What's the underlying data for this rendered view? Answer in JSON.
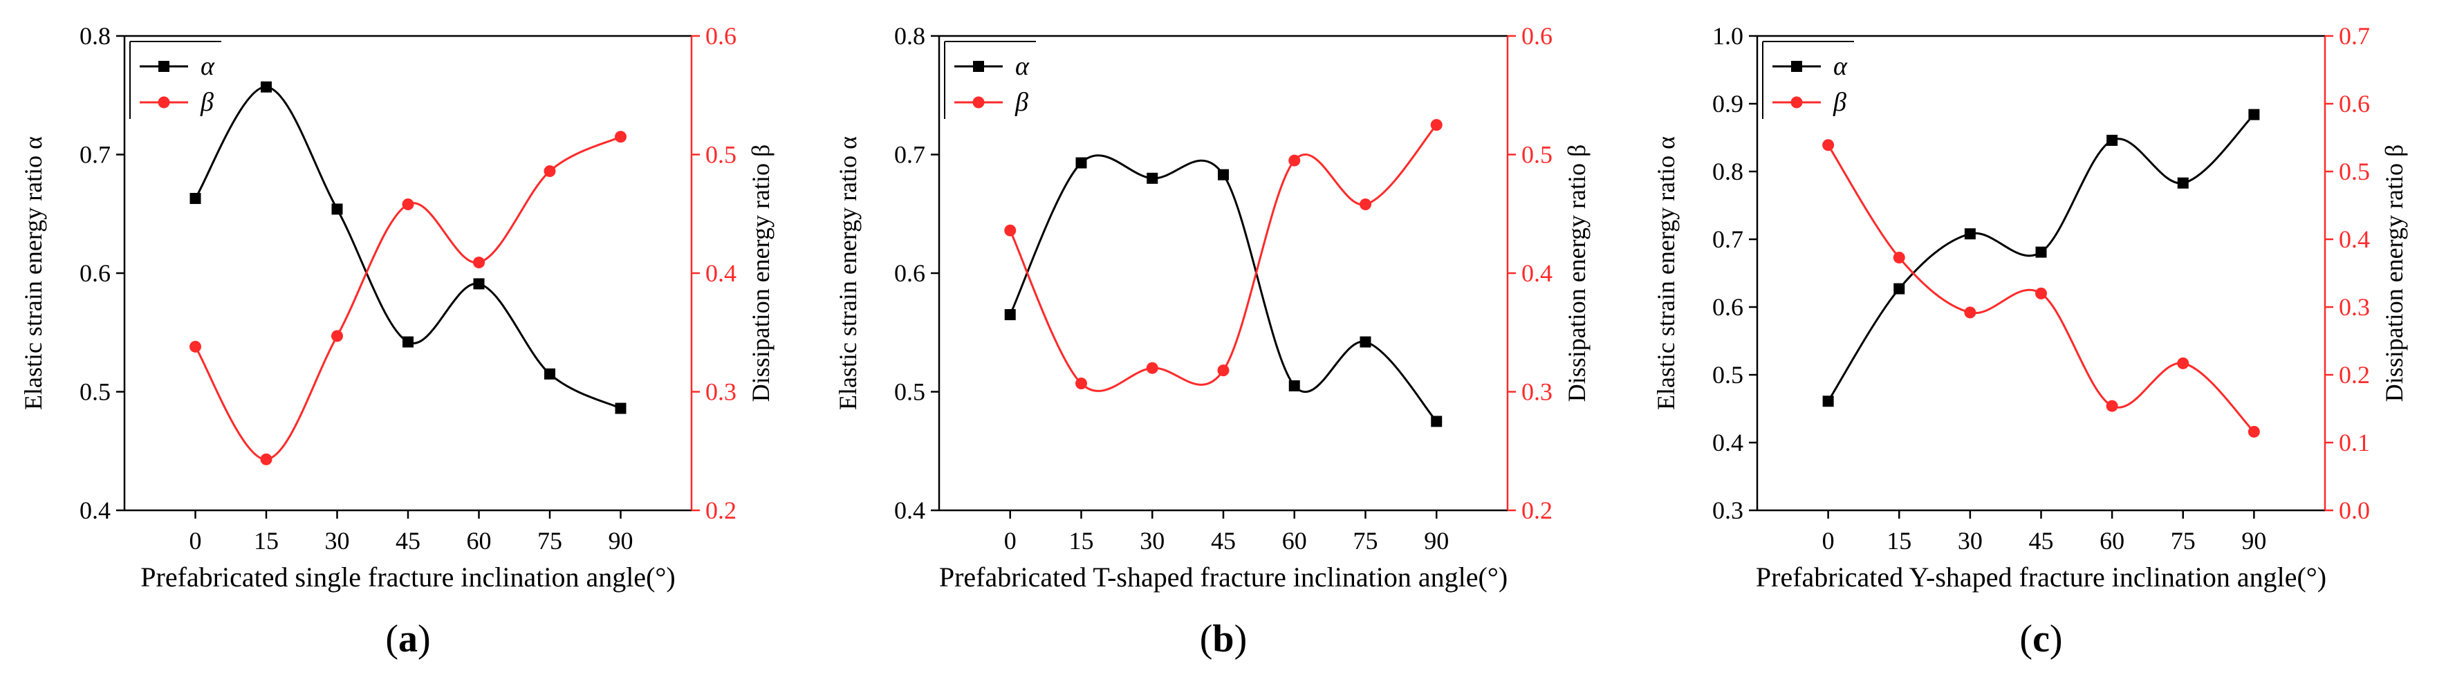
{
  "chart_data": [
    {
      "type": "line",
      "panel_label": "a",
      "title": "",
      "xlabel": "Prefabricated single fracture inclination angle(°)",
      "ylabel_left": "Elastic strain energy ratio α",
      "ylabel_right": "Dissipation energy ratio β",
      "x": [
        0,
        15,
        30,
        45,
        60,
        75,
        90
      ],
      "x_ticks": [
        0,
        15,
        30,
        45,
        60,
        75,
        90
      ],
      "xlim": [
        -15,
        105
      ],
      "ylim_left": [
        0.4,
        0.8
      ],
      "yticks_left": [
        0.4,
        0.5,
        0.6,
        0.7,
        0.8
      ],
      "ylim_right": [
        0.2,
        0.6
      ],
      "yticks_right": [
        0.2,
        0.3,
        0.4,
        0.5,
        0.6
      ],
      "legend": "top-left",
      "series": [
        {
          "name": "α",
          "axis": "left",
          "color": "#000000",
          "marker": "square",
          "values": [
            0.663,
            0.757,
            0.654,
            0.542,
            0.591,
            0.515,
            0.486
          ]
        },
        {
          "name": "β",
          "axis": "right",
          "color": "#ff2a2a",
          "marker": "circle",
          "values": [
            0.338,
            0.243,
            0.347,
            0.458,
            0.409,
            0.486,
            0.515
          ]
        }
      ]
    },
    {
      "type": "line",
      "panel_label": "b",
      "title": "",
      "xlabel": "Prefabricated T-shaped fracture inclination angle(°)",
      "ylabel_left": "Elastic strain energy ratio α",
      "ylabel_right": "Dissipation energy ratio β",
      "x": [
        0,
        15,
        30,
        45,
        60,
        75,
        90
      ],
      "x_ticks": [
        0,
        15,
        30,
        45,
        60,
        75,
        90
      ],
      "xlim": [
        -15,
        105
      ],
      "ylim_left": [
        0.4,
        0.8
      ],
      "yticks_left": [
        0.4,
        0.5,
        0.6,
        0.7,
        0.8
      ],
      "ylim_right": [
        0.2,
        0.6
      ],
      "yticks_right": [
        0.2,
        0.3,
        0.4,
        0.5,
        0.6
      ],
      "legend": "top-left",
      "series": [
        {
          "name": "α",
          "axis": "left",
          "color": "#000000",
          "marker": "square",
          "values": [
            0.565,
            0.693,
            0.68,
            0.683,
            0.505,
            0.542,
            0.475
          ]
        },
        {
          "name": "β",
          "axis": "right",
          "color": "#ff2a2a",
          "marker": "circle",
          "values": [
            0.436,
            0.307,
            0.32,
            0.318,
            0.495,
            0.458,
            0.525
          ]
        }
      ]
    },
    {
      "type": "line",
      "panel_label": "c",
      "title": "",
      "xlabel": "Prefabricated Y-shaped fracture inclination angle(°)",
      "ylabel_left": "Elastic strain energy ratio α",
      "ylabel_right": "Dissipation energy ratio β",
      "x": [
        0,
        15,
        30,
        45,
        60,
        75,
        90
      ],
      "x_ticks": [
        0,
        15,
        30,
        45,
        60,
        75,
        90
      ],
      "xlim": [
        -15,
        105
      ],
      "ylim_left": [
        0.3,
        1.0
      ],
      "yticks_left": [
        0.3,
        0.4,
        0.5,
        0.6,
        0.7,
        0.8,
        0.9,
        1.0
      ],
      "ylim_right": [
        0.0,
        0.7
      ],
      "yticks_right": [
        0.0,
        0.1,
        0.2,
        0.3,
        0.4,
        0.5,
        0.6,
        0.7
      ],
      "legend": "top-left",
      "series": [
        {
          "name": "α",
          "axis": "left",
          "color": "#000000",
          "marker": "square",
          "values": [
            0.461,
            0.627,
            0.708,
            0.681,
            0.846,
            0.783,
            0.884
          ]
        },
        {
          "name": "β",
          "axis": "right",
          "color": "#ff2a2a",
          "marker": "circle",
          "values": [
            0.539,
            0.373,
            0.292,
            0.32,
            0.154,
            0.217,
            0.116
          ]
        }
      ]
    }
  ]
}
